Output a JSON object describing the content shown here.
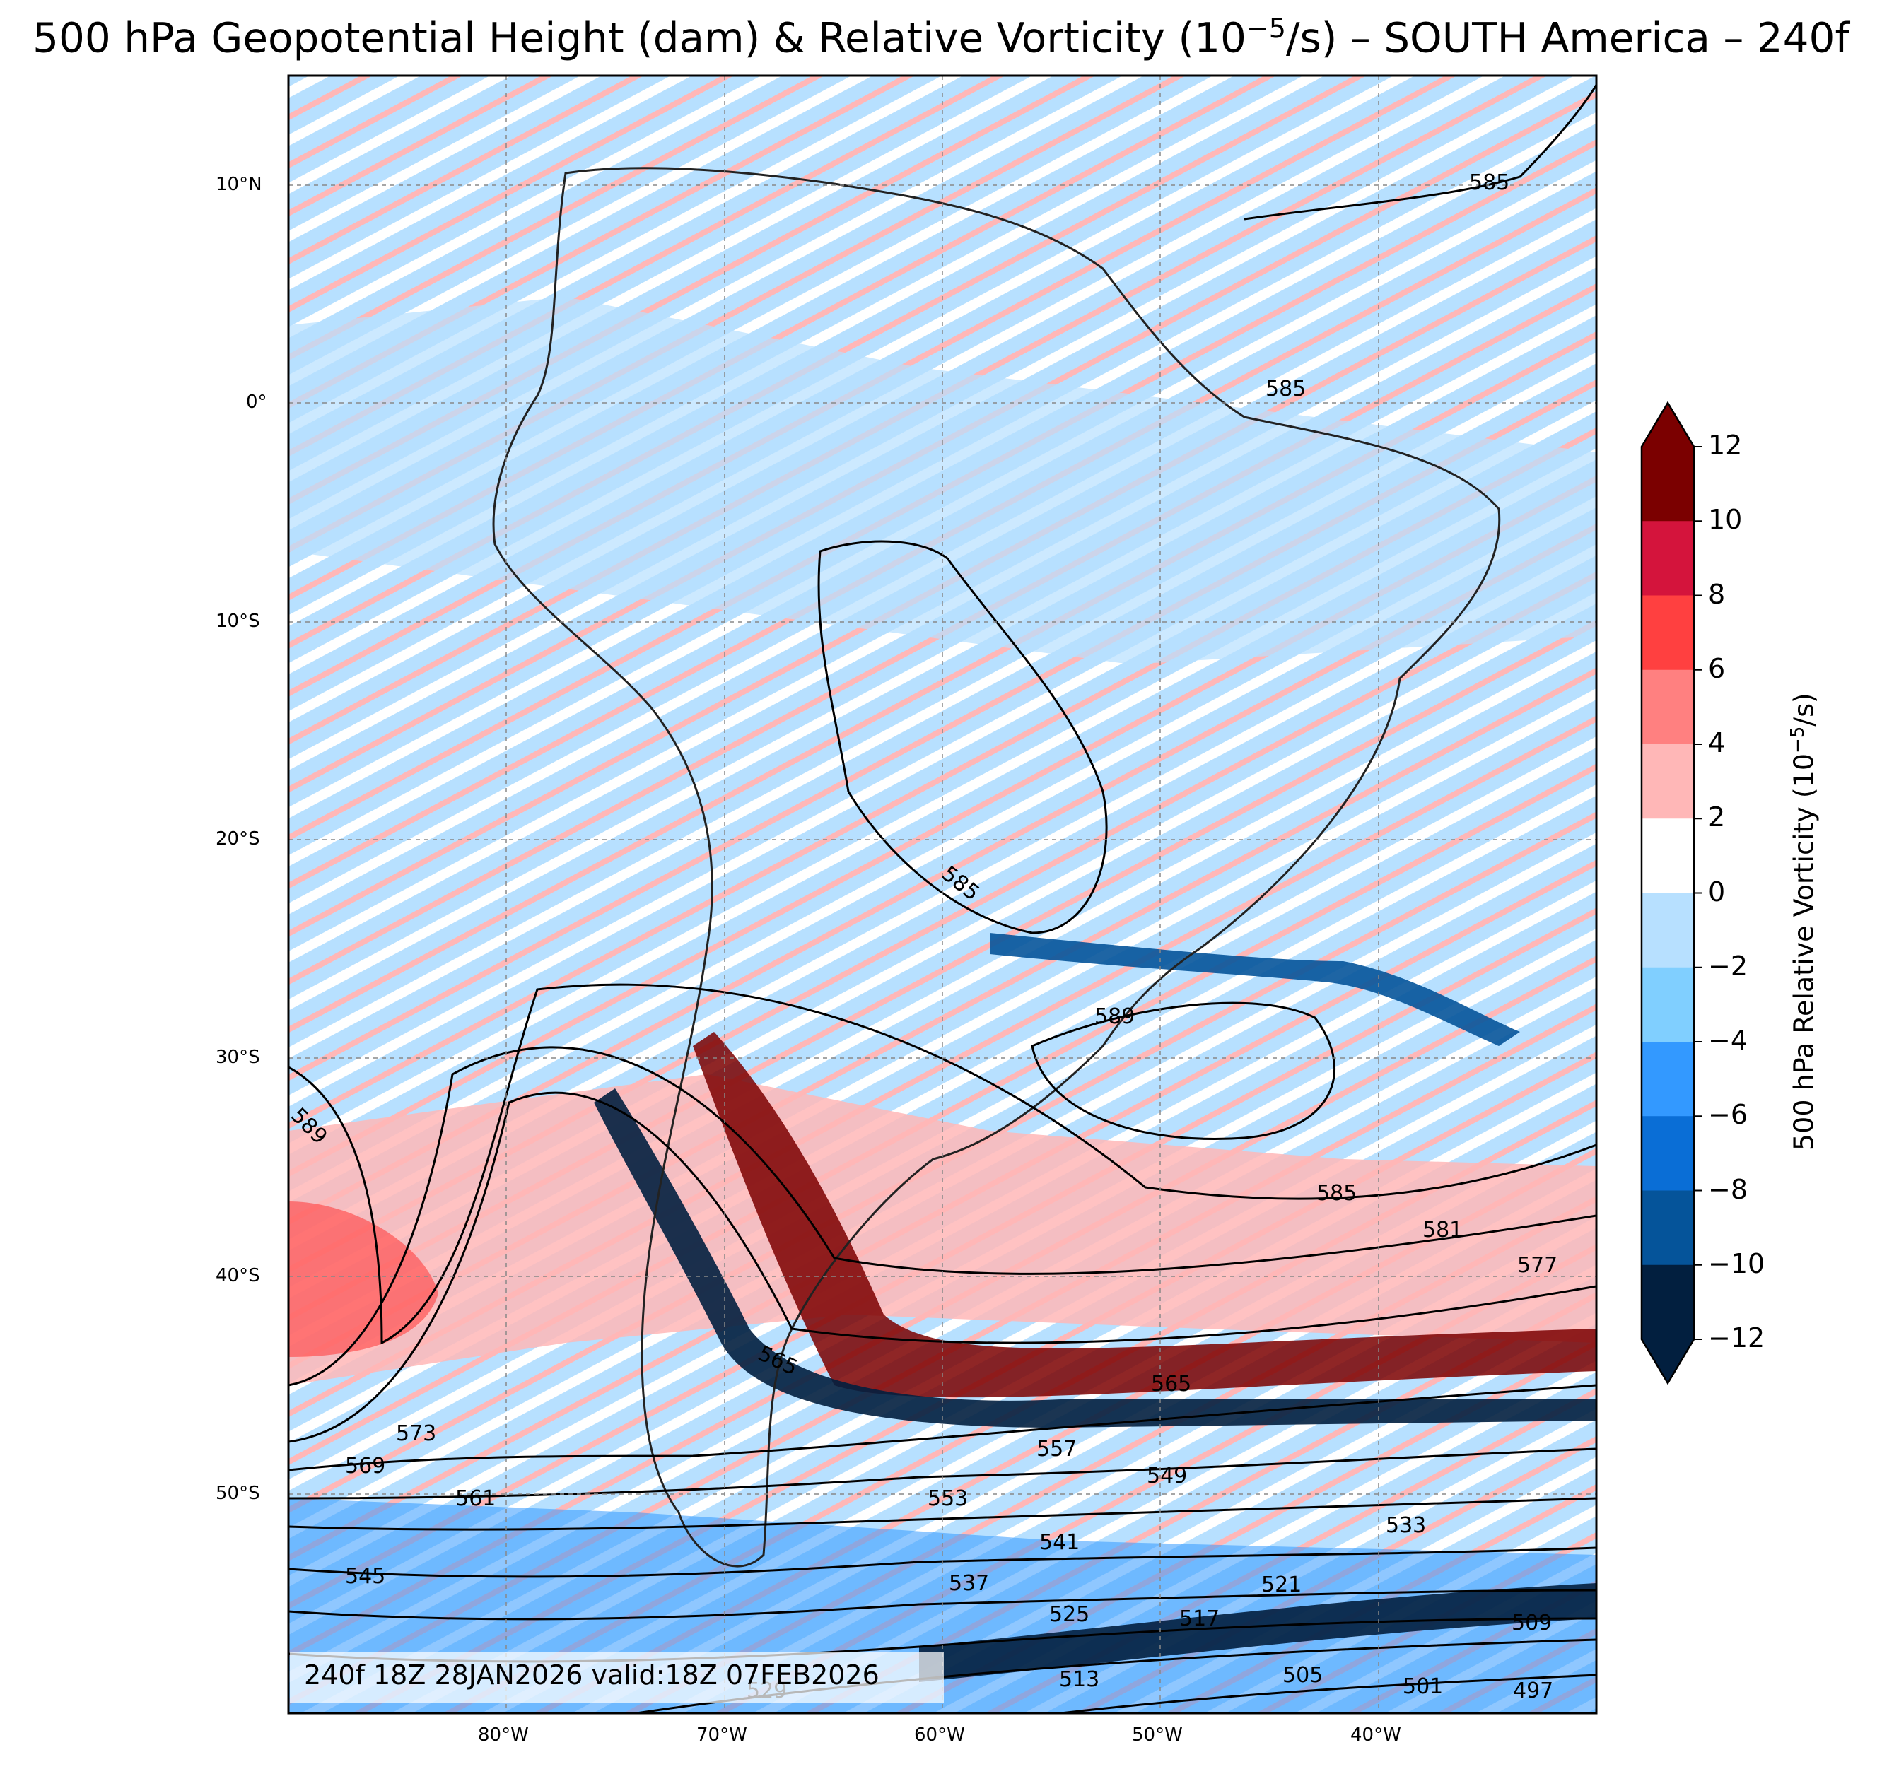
{
  "title": {
    "prefix": "500 hPa Geopotential Height (dam) & Relative Vorticity (10",
    "exp": "−5",
    "suffix": "/s) – SOUTH America – 240f"
  },
  "map": {
    "lon_range": [
      -90,
      -30
    ],
    "lat_range": [
      -59,
      15
    ],
    "lat_ticks": [
      "10°N",
      "0°",
      "10°S",
      "20°S",
      "30°S",
      "40°S",
      "50°S"
    ],
    "lon_ticks": [
      "80°W",
      "70°W",
      "60°W",
      "50°W",
      "40°W"
    ],
    "gridlines": "dashed gray",
    "contour_labels": [
      "585",
      "585",
      "585",
      "589",
      "589",
      "585",
      "581",
      "577",
      "565",
      "565",
      "573",
      "569",
      "561",
      "557",
      "549",
      "553",
      "533",
      "541",
      "545",
      "537",
      "525",
      "521",
      "517",
      "509",
      "513",
      "505",
      "501",
      "497",
      "529"
    ],
    "valid_text": "240f 18Z 28JAN2026 valid:18Z 07FEB2026"
  },
  "colorbar": {
    "label_prefix": "500 hPa Relative Vorticity (10",
    "label_exp": "−5",
    "label_suffix": "/s)",
    "ticks": [
      "12",
      "10",
      "8",
      "6",
      "4",
      "2",
      "0",
      "−2",
      "−4",
      "−6",
      "−8",
      "−10",
      "−12"
    ],
    "colors": [
      "#7b0000",
      "#d4143c",
      "#ff4040",
      "#ff8080",
      "#ffb7b7",
      "#ffffff",
      "#b7e0ff",
      "#80cfff",
      "#3399ff",
      "#0a6ed6",
      "#05549a",
      "#021f3f"
    ],
    "over_color": "#7b0000",
    "under_color": "#021f3f",
    "extend": "both"
  }
}
